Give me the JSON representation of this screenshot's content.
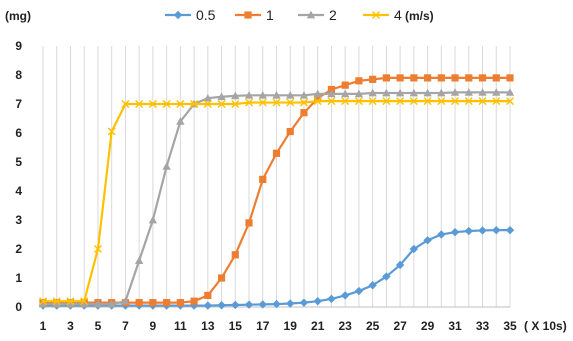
{
  "chart_data": {
    "type": "line",
    "ylabel": "(mg)",
    "xlabel": "( X 10s)",
    "legend_title": "(m/s)",
    "legend_position": "top",
    "grid": "vertical",
    "xlim": [
      1,
      35
    ],
    "ylim": [
      0,
      9
    ],
    "x": [
      1,
      2,
      3,
      4,
      5,
      6,
      7,
      8,
      9,
      10,
      11,
      12,
      13,
      14,
      15,
      16,
      17,
      18,
      19,
      20,
      21,
      22,
      23,
      24,
      25,
      26,
      27,
      28,
      29,
      30,
      31,
      32,
      33,
      34,
      35
    ],
    "x_ticks": [
      "1",
      "3",
      "5",
      "7",
      "9",
      "11",
      "13",
      "15",
      "17",
      "19",
      "21",
      "23",
      "25",
      "27",
      "29",
      "31",
      "33",
      "35"
    ],
    "y_ticks": [
      "0",
      "1",
      "2",
      "3",
      "4",
      "5",
      "6",
      "7",
      "8",
      "9"
    ],
    "series": [
      {
        "name": "0.5",
        "color": "#5b9bd5",
        "marker": "diamond",
        "values": [
          0.05,
          0.05,
          0.05,
          0.05,
          0.05,
          0.05,
          0.05,
          0.05,
          0.05,
          0.05,
          0.05,
          0.05,
          0.05,
          0.06,
          0.07,
          0.08,
          0.09,
          0.1,
          0.12,
          0.15,
          0.2,
          0.28,
          0.4,
          0.55,
          0.75,
          1.05,
          1.45,
          2.0,
          2.3,
          2.5,
          2.58,
          2.62,
          2.64,
          2.65,
          2.65
        ]
      },
      {
        "name": "1",
        "color": "#ed7d31",
        "marker": "square",
        "values": [
          0.15,
          0.15,
          0.15,
          0.15,
          0.15,
          0.15,
          0.15,
          0.15,
          0.15,
          0.15,
          0.15,
          0.2,
          0.4,
          1.0,
          1.8,
          2.9,
          4.4,
          5.3,
          6.05,
          6.7,
          7.2,
          7.5,
          7.65,
          7.8,
          7.85,
          7.9,
          7.9,
          7.9,
          7.9,
          7.9,
          7.9,
          7.9,
          7.9,
          7.9,
          7.9
        ]
      },
      {
        "name": "2",
        "color": "#a5a5a5",
        "marker": "triangle",
        "values": [
          0.1,
          0.1,
          0.1,
          0.1,
          0.1,
          0.1,
          0.2,
          1.6,
          3.0,
          4.85,
          6.4,
          7.0,
          7.2,
          7.25,
          7.28,
          7.3,
          7.3,
          7.3,
          7.3,
          7.3,
          7.35,
          7.35,
          7.35,
          7.35,
          7.38,
          7.38,
          7.38,
          7.38,
          7.38,
          7.38,
          7.4,
          7.4,
          7.4,
          7.4,
          7.4
        ]
      },
      {
        "name": "4",
        "color": "#ffc000",
        "marker": "x",
        "values": [
          0.2,
          0.2,
          0.2,
          0.2,
          2.0,
          6.05,
          7.0,
          7.0,
          7.0,
          7.0,
          7.0,
          7.0,
          7.0,
          7.0,
          7.0,
          7.05,
          7.05,
          7.05,
          7.05,
          7.05,
          7.1,
          7.1,
          7.1,
          7.1,
          7.1,
          7.1,
          7.1,
          7.1,
          7.1,
          7.1,
          7.1,
          7.1,
          7.1,
          7.1,
          7.1
        ]
      }
    ]
  }
}
